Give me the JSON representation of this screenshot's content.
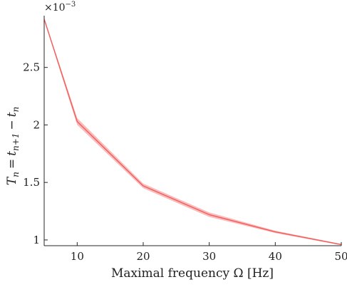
{
  "chart_data": {
    "type": "line",
    "title": "",
    "xlabel": "Maximal frequency Ω [Hz]",
    "ylabel": "T_n = t_{n+1} − t_n",
    "ylabel_parts": {
      "base": "T",
      "sub": "n",
      "eq": "=",
      "t1": "t",
      "sub1": "n+1",
      "minus": "−",
      "t2": "t",
      "sub2": "n"
    },
    "y_exponent": {
      "base": "×10",
      "power": "−3"
    },
    "xlim": [
      5,
      50
    ],
    "ylim": [
      0.95,
      2.95
    ],
    "x_ticks": [
      10,
      20,
      30,
      40,
      50
    ],
    "x_tick_labels": [
      "10",
      "20",
      "30",
      "40",
      "50"
    ],
    "y_ticks": [
      1,
      1.5,
      2,
      2.5
    ],
    "y_tick_labels": [
      "1",
      "1.5",
      "2",
      "2.5"
    ],
    "grid": false,
    "series": [
      {
        "x": [
          5,
          10,
          20,
          30,
          40,
          50
        ],
        "y": [
          2.92,
          2.03,
          1.47,
          1.22,
          1.07,
          0.96
        ],
        "band_lower": [
          2.91,
          2.0,
          1.45,
          1.2,
          1.06,
          0.955
        ],
        "band_upper": [
          2.93,
          2.06,
          1.49,
          1.24,
          1.08,
          0.965
        ],
        "color": "#f25c5c",
        "band_color": "#f7a6a6"
      }
    ]
  }
}
